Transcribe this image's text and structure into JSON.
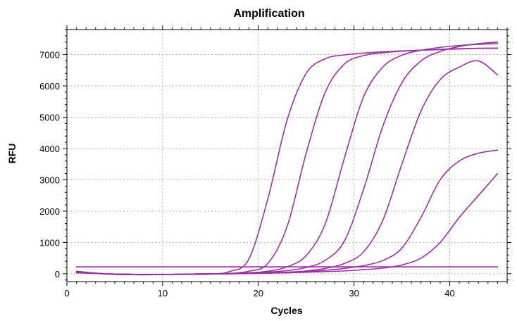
{
  "chart_data": {
    "type": "line",
    "title": "Amplification",
    "xlabel": "Cycles",
    "ylabel": "RFU",
    "xlim": [
      0,
      46
    ],
    "ylim": [
      -250,
      7800
    ],
    "xticks": [
      0,
      10,
      20,
      30,
      40
    ],
    "yticks": [
      0,
      1000,
      2000,
      3000,
      4000,
      5000,
      6000,
      7000
    ],
    "grid": true,
    "line_color": "#9b2fa6",
    "x": [
      1,
      3,
      5,
      7,
      9,
      11,
      13,
      15,
      17,
      19,
      21,
      23,
      25,
      27,
      29,
      31,
      33,
      35,
      37,
      39,
      41,
      43,
      45
    ],
    "series": [
      {
        "values": [
          80,
          20,
          -20,
          -30,
          -30,
          -20,
          -20,
          -10,
          70,
          460,
          2400,
          4900,
          6400,
          6870,
          6990,
          7050,
          7090,
          7120,
          7140,
          7160,
          7180,
          7200,
          7200
        ]
      },
      {
        "values": [
          70,
          20,
          -20,
          -30,
          -30,
          -20,
          -20,
          -10,
          10,
          80,
          330,
          1500,
          3850,
          5800,
          6700,
          6970,
          7060,
          7110,
          7140,
          7170,
          7190,
          7200,
          7210
        ]
      },
      {
        "values": [
          60,
          20,
          -10,
          -20,
          -20,
          -20,
          -10,
          0,
          10,
          30,
          80,
          220,
          580,
          1600,
          3700,
          5650,
          6600,
          6980,
          7140,
          7230,
          7290,
          7330,
          7350
        ]
      },
      {
        "values": [
          50,
          10,
          -10,
          -20,
          -20,
          -20,
          -10,
          0,
          10,
          20,
          50,
          100,
          200,
          430,
          1050,
          2700,
          4700,
          6100,
          6800,
          7100,
          7260,
          7350,
          7400
        ]
      },
      {
        "values": [
          40,
          10,
          -10,
          -20,
          -20,
          -20,
          -10,
          0,
          0,
          10,
          20,
          50,
          90,
          170,
          330,
          700,
          1700,
          3500,
          5200,
          6200,
          6600,
          6800,
          6350
        ]
      },
      {
        "values": [
          40,
          10,
          -10,
          -20,
          -20,
          -20,
          -10,
          0,
          0,
          10,
          20,
          40,
          70,
          110,
          170,
          260,
          420,
          820,
          1800,
          3000,
          3600,
          3850,
          3950
        ]
      },
      {
        "values": [
          30,
          10,
          -10,
          -20,
          -20,
          -20,
          -10,
          0,
          0,
          10,
          20,
          30,
          50,
          70,
          90,
          130,
          180,
          280,
          500,
          1000,
          1800,
          2500,
          3200
        ]
      },
      {
        "values": [
          220,
          220,
          220,
          220,
          220,
          220,
          220,
          220,
          220,
          220,
          220,
          220,
          220,
          220,
          220,
          220,
          220,
          220,
          220,
          220,
          220,
          220,
          220
        ]
      }
    ]
  }
}
